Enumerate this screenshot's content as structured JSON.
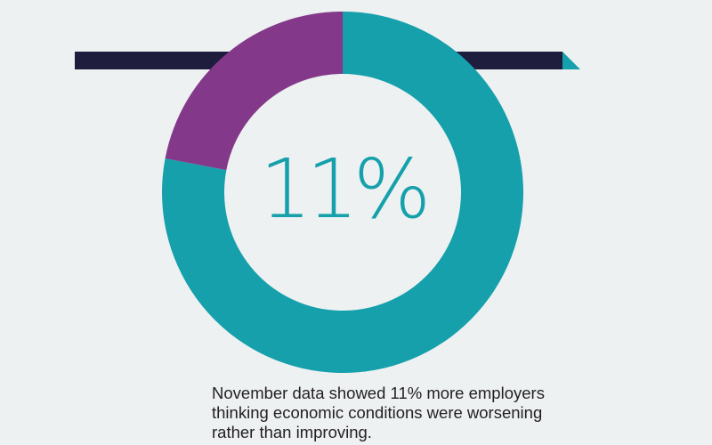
{
  "colors": {
    "background": "#edf1f2",
    "banner": "#1f1d3e",
    "teal": "#15a0ab",
    "purple": "#84388a",
    "center_text": "#15a0ab",
    "caption_text": "#231f20"
  },
  "chart_data": {
    "type": "pie",
    "style": "donut",
    "center_label": "11%",
    "slices": [
      {
        "label": "",
        "value": 78,
        "color": "#15a0ab"
      },
      {
        "label": "",
        "value": 22,
        "color": "#84388a"
      }
    ],
    "start_angle_deg": 0,
    "direction": "clockwise",
    "legend": "none"
  },
  "caption": {
    "lines": [
      "November data showed 11% more employers",
      "thinking economic conditions were worsening",
      "rather than improving."
    ]
  }
}
